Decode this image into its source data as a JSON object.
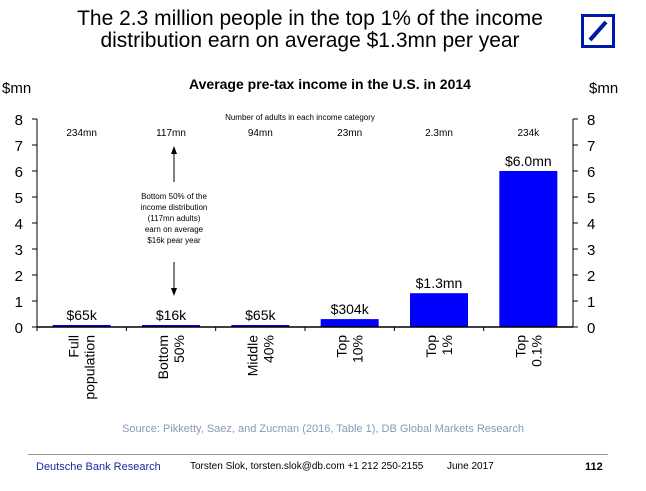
{
  "slide_title": {
    "line1": "The 2.3 million people in the top 1% of the income",
    "line2": "distribution earn on average $1.3mn per year"
  },
  "brand_color": "#0018a8",
  "chart_data": {
    "type": "bar",
    "title": "Average pre-tax income in the U.S. in 2014",
    "ylabel_left": "$mn",
    "ylabel_right": "$mn",
    "ylim": [
      0,
      8
    ],
    "yticks": [
      0,
      1,
      2,
      3,
      4,
      5,
      6,
      7,
      8
    ],
    "categories": [
      "Full population",
      "Bottom 50%",
      "Middle 40%",
      "Top 10%",
      "Top 1%",
      "Top 0.1%"
    ],
    "values": [
      0.065,
      0.016,
      0.065,
      0.304,
      1.3,
      6.0
    ],
    "data_labels": [
      "$65k",
      "$16k",
      "$65k",
      "$304k",
      "$1.3mn",
      "$6.0mn"
    ],
    "adults_header": "Number of adults in each income category",
    "adults": [
      "234mn",
      "117mn",
      "94mn",
      "23mn",
      "2.3mn",
      "234k"
    ],
    "annotation": [
      "Bottom 50% of the",
      "income distribution",
      "(117mn adults)",
      "earn on average",
      "$16k pear year"
    ],
    "bar_color": "#0000ff"
  },
  "source": "Source: Pikketty, Saez, and Zucman (2016, Table 1), DB Global Markets Research",
  "footer": {
    "brand": "Deutsche Bank Research",
    "contact": "Torsten Slok, torsten.slok@db.com  +1 212 250-2155",
    "date": "June 2017",
    "page": "112"
  }
}
